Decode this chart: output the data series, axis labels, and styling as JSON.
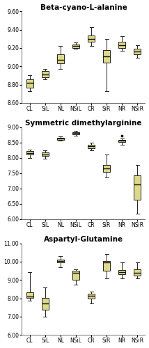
{
  "plots": [
    {
      "title": "Beta-cyano-L-alanine",
      "ylim": [
        8.6,
        9.6
      ],
      "yticks": [
        8.6,
        8.8,
        9.0,
        9.2,
        9.4,
        9.6
      ],
      "ytick_labels": [
        "8.60",
        "8.80",
        "9.00",
        "9.20",
        "9.40",
        "9.60"
      ],
      "boxes": [
        {
          "label": "CL",
          "whislo": 8.73,
          "q1": 8.77,
          "med": 8.82,
          "q3": 8.86,
          "whishi": 8.9,
          "fliers": []
        },
        {
          "label": "SiL",
          "whislo": 8.86,
          "q1": 8.88,
          "med": 8.91,
          "q3": 8.95,
          "whishi": 8.97,
          "fliers": []
        },
        {
          "label": "NL",
          "whislo": 8.97,
          "q1": 9.03,
          "med": 9.07,
          "q3": 9.13,
          "whishi": 9.22,
          "fliers": []
        },
        {
          "label": "NSiL",
          "whislo": 9.19,
          "q1": 9.2,
          "med": 9.22,
          "q3": 9.24,
          "whishi": 9.26,
          "fliers": []
        },
        {
          "label": "CR",
          "whislo": 9.22,
          "q1": 9.27,
          "med": 9.3,
          "q3": 9.34,
          "whishi": 9.43,
          "fliers": []
        },
        {
          "label": "SiR",
          "whislo": 8.73,
          "q1": 9.04,
          "med": 9.11,
          "q3": 9.18,
          "whishi": 9.3,
          "fliers": []
        },
        {
          "label": "NR",
          "whislo": 9.17,
          "q1": 9.2,
          "med": 9.23,
          "q3": 9.27,
          "whishi": 9.33,
          "fliers": []
        },
        {
          "label": "NSiR",
          "whislo": 9.09,
          "q1": 9.13,
          "med": 9.16,
          "q3": 9.19,
          "whishi": 9.23,
          "fliers": []
        }
      ]
    },
    {
      "title": "Symmetric dimethylarginine",
      "ylim": [
        6.0,
        9.0
      ],
      "yticks": [
        6.0,
        6.5,
        7.0,
        7.5,
        8.0,
        8.5,
        9.0
      ],
      "ytick_labels": [
        "6.00",
        "6.50",
        "7.00",
        "7.50",
        "8.00",
        "8.50",
        "9.00"
      ],
      "boxes": [
        {
          "label": "CL",
          "whislo": 8.0,
          "q1": 8.1,
          "med": 8.15,
          "q3": 8.23,
          "whishi": 8.28,
          "fliers": []
        },
        {
          "label": "SiL",
          "whislo": 7.97,
          "q1": 8.06,
          "med": 8.12,
          "q3": 8.18,
          "whishi": 8.24,
          "fliers": []
        },
        {
          "label": "NL",
          "whislo": 8.56,
          "q1": 8.6,
          "med": 8.63,
          "q3": 8.66,
          "whishi": 8.7,
          "fliers": []
        },
        {
          "label": "NSiL",
          "whislo": 8.73,
          "q1": 8.78,
          "med": 8.82,
          "q3": 8.85,
          "whishi": 8.88,
          "fliers": []
        },
        {
          "label": "CR",
          "whislo": 8.25,
          "q1": 8.32,
          "med": 8.38,
          "q3": 8.43,
          "whishi": 8.5,
          "fliers": []
        },
        {
          "label": "SiR",
          "whislo": 7.35,
          "q1": 7.55,
          "med": 7.65,
          "q3": 7.78,
          "whishi": 8.12,
          "fliers": []
        },
        {
          "label": "NR",
          "whislo": 8.44,
          "q1": 8.52,
          "med": 8.57,
          "q3": 8.6,
          "whishi": 8.64,
          "fliers": [
            8.73
          ]
        },
        {
          "label": "NSiR",
          "whislo": 6.18,
          "q1": 6.62,
          "med": 7.12,
          "q3": 7.42,
          "whishi": 7.78,
          "fliers": []
        }
      ]
    },
    {
      "title": "Aspartyl-Glutamine",
      "ylim": [
        6.0,
        11.0
      ],
      "yticks": [
        6.0,
        7.0,
        8.0,
        9.0,
        10.0,
        11.0
      ],
      "ytick_labels": [
        "6.00",
        "7.00",
        "8.00",
        "9.00",
        "10.00",
        "11.00"
      ],
      "boxes": [
        {
          "label": "CL",
          "whislo": 7.88,
          "q1": 8.03,
          "med": 8.1,
          "q3": 8.32,
          "whishi": 9.42,
          "fliers": []
        },
        {
          "label": "SiL",
          "whislo": 7.0,
          "q1": 7.38,
          "med": 7.72,
          "q3": 8.02,
          "whishi": 8.6,
          "fliers": []
        },
        {
          "label": "NL",
          "whislo": 9.7,
          "q1": 9.95,
          "med": 10.02,
          "q3": 10.1,
          "whishi": 10.3,
          "fliers": []
        },
        {
          "label": "NSiL",
          "whislo": 8.75,
          "q1": 9.0,
          "med": 9.38,
          "q3": 9.5,
          "whishi": 9.6,
          "fliers": []
        },
        {
          "label": "CR",
          "whislo": 7.73,
          "q1": 7.98,
          "med": 8.12,
          "q3": 8.26,
          "whishi": 8.38,
          "fliers": []
        },
        {
          "label": "SiR",
          "whislo": 9.08,
          "q1": 9.52,
          "med": 9.95,
          "q3": 10.05,
          "whishi": 10.42,
          "fliers": []
        },
        {
          "label": "NR",
          "whislo": 9.08,
          "q1": 9.3,
          "med": 9.42,
          "q3": 9.55,
          "whishi": 9.98,
          "fliers": []
        },
        {
          "label": "NSiR",
          "whislo": 9.08,
          "q1": 9.25,
          "med": 9.38,
          "q3": 9.6,
          "whishi": 9.98,
          "fliers": []
        }
      ]
    }
  ],
  "box_facecolor": "#ddd98b",
  "box_edgecolor": "#222222",
  "median_color": "#111111",
  "whisker_color": "#222222",
  "cap_color": "#222222",
  "flier_color": "#111111",
  "bg_color": "#ffffff",
  "title_fontsize": 7.5,
  "tick_fontsize": 5.5,
  "xlabel_fontsize": 5.5,
  "figsize": [
    2.14,
    5.0
  ],
  "dpi": 100
}
